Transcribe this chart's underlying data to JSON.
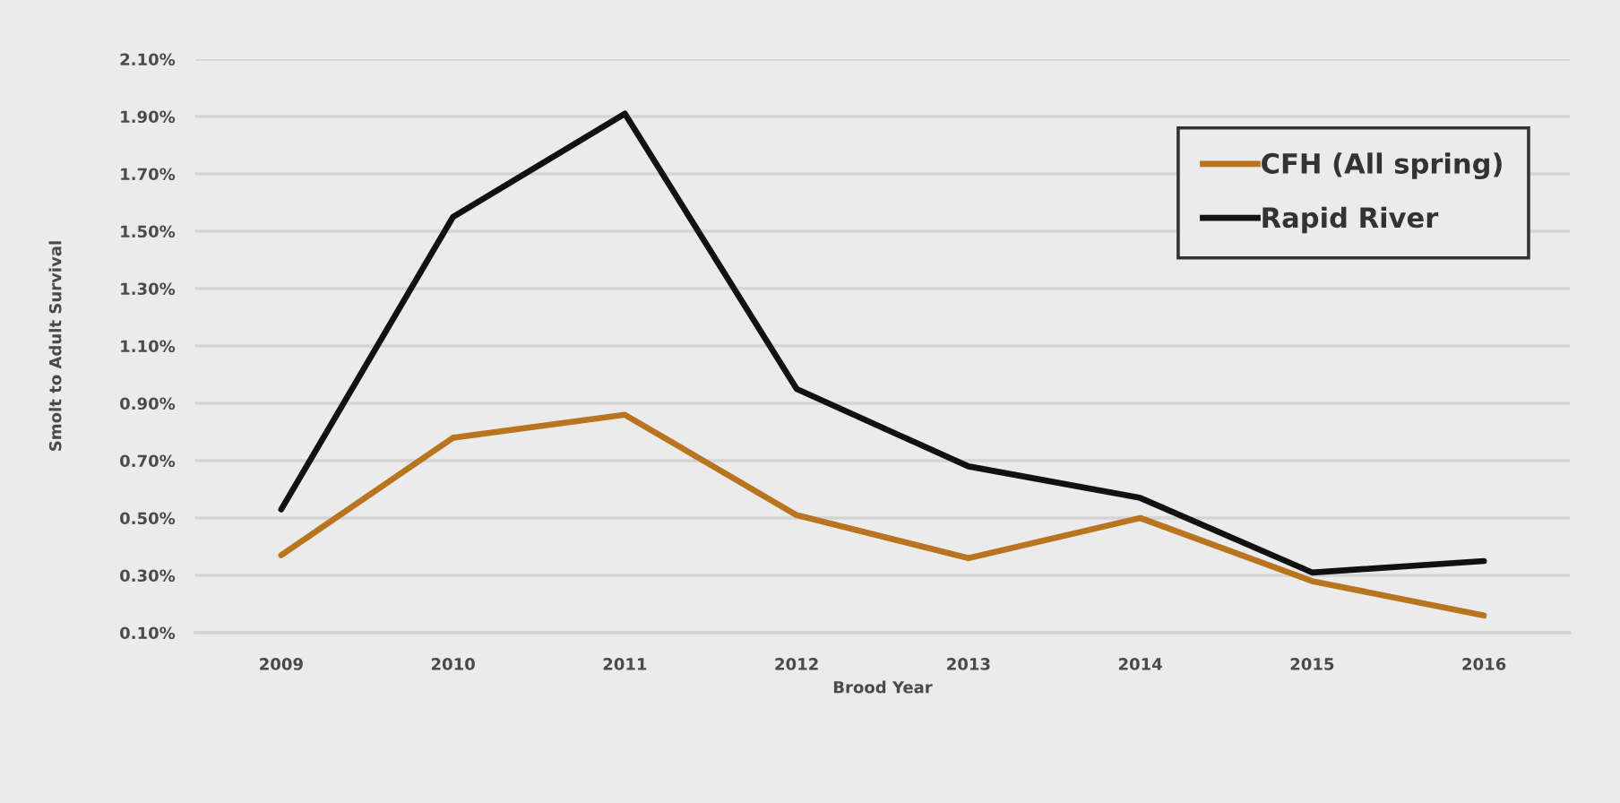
{
  "chart_data": {
    "type": "line",
    "xlabel": "Brood Year",
    "ylabel": "Smolt to Adult Survival",
    "categories": [
      "2009",
      "2010",
      "2011",
      "2012",
      "2013",
      "2014",
      "2015",
      "2016"
    ],
    "series": [
      {
        "name": "CFH (All spring)",
        "color": "#b8741f",
        "values": [
          0.37,
          0.78,
          0.86,
          0.51,
          0.36,
          0.5,
          0.28,
          0.16
        ]
      },
      {
        "name": "Rapid River",
        "color": "#111111",
        "values": [
          0.53,
          1.55,
          1.91,
          0.95,
          0.68,
          0.57,
          0.31,
          0.35
        ]
      }
    ],
    "ylim": [
      0.1,
      2.1
    ],
    "yticks": [
      {
        "value": 0.1,
        "label": "0.10%"
      },
      {
        "value": 0.3,
        "label": "0.30%"
      },
      {
        "value": 0.5,
        "label": "0.50%"
      },
      {
        "value": 0.7,
        "label": "0.70%"
      },
      {
        "value": 0.9,
        "label": "0.90%"
      },
      {
        "value": 1.1,
        "label": "1.10%"
      },
      {
        "value": 1.3,
        "label": "1.30%"
      },
      {
        "value": 1.5,
        "label": "1.50%"
      },
      {
        "value": 1.7,
        "label": "1.70%"
      },
      {
        "value": 1.9,
        "label": "1.90%"
      },
      {
        "value": 2.1,
        "label": "2.10%"
      }
    ],
    "grid": "y",
    "legend": "top right",
    "marker": "none",
    "line_style": "solid"
  }
}
